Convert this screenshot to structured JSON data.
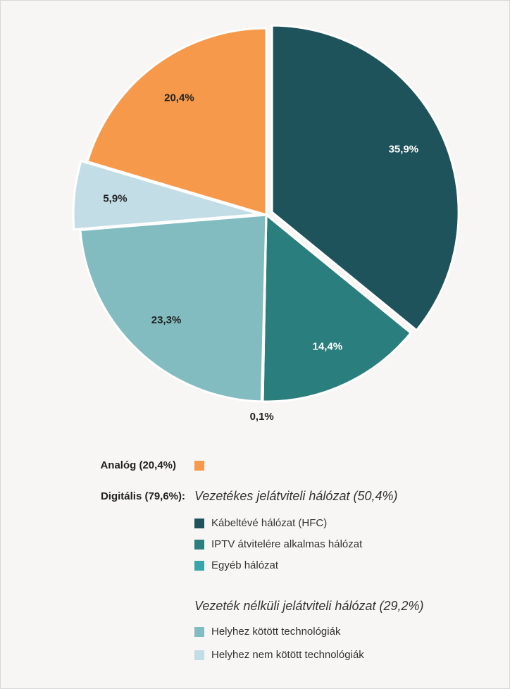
{
  "chart_data": {
    "type": "pie",
    "categories": [
      "Kábeltévé hálózat (HFC)",
      "IPTV átvitelére alkalmas hálózat",
      "Egyéb hálózat",
      "Helyhez kötött technológiák",
      "Helyhez nem kötött technológiák",
      "Analóg (20,4%)"
    ],
    "values": [
      35.9,
      14.4,
      0.1,
      23.3,
      5.9,
      20.4
    ],
    "value_labels": [
      "35,9%",
      "14,4%",
      "0,1%",
      "23,3%",
      "5,9%",
      "20,4%"
    ],
    "colors": [
      "#1f535b",
      "#2a7f7e",
      "#3aa5a8",
      "#82bcc0",
      "#c2dde6",
      "#f7994a"
    ],
    "digital_label": "Digitális (79,6%):",
    "wired_title": "Vezetékes jelátviteli hálózat (50,4%)",
    "wireless_title": "Vezeték nélküli jelátviteli hálózat (29,2%)"
  }
}
